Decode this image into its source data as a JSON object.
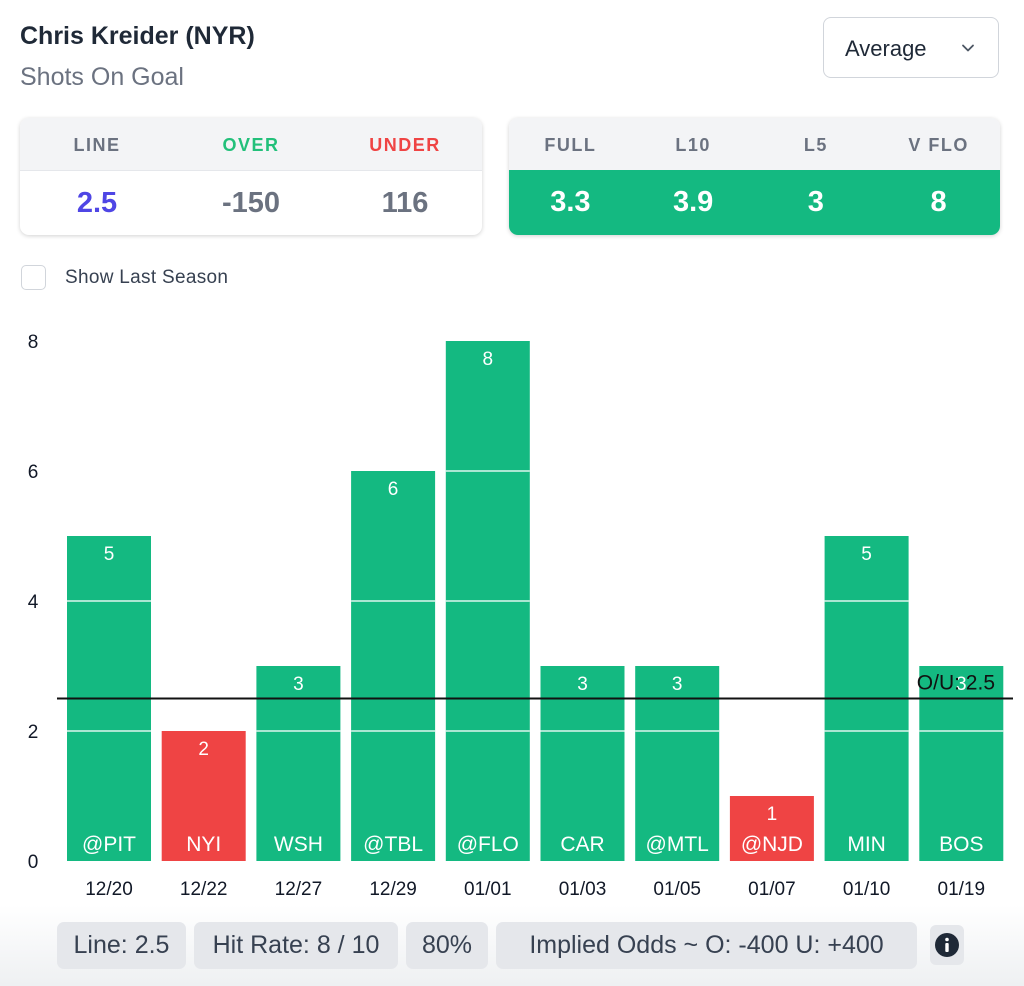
{
  "header": {
    "player": "Chris Kreider (NYR)",
    "stat": "Shots On Goal"
  },
  "dropdown": {
    "selected": "Average",
    "icon": "chevron-down-icon"
  },
  "odds_card": {
    "headers": [
      "LINE",
      "OVER",
      "UNDER"
    ],
    "values": [
      "2.5",
      "-150",
      "116"
    ]
  },
  "avg_card": {
    "headers": [
      "FULL",
      "L10",
      "L5",
      "V FLO"
    ],
    "values": [
      "3.3",
      "3.9",
      "3",
      "8"
    ]
  },
  "checkbox": {
    "label": "Show Last Season",
    "checked": false
  },
  "colors": {
    "over": "#14b981",
    "under": "#ef4444",
    "line_value": "#4f46e5",
    "over_text": "#22c07a"
  },
  "chart_data": {
    "type": "bar",
    "categories": [
      "12/20",
      "12/22",
      "12/27",
      "12/29",
      "01/01",
      "01/03",
      "01/05",
      "01/07",
      "01/10",
      "01/19"
    ],
    "opponents": [
      "@PIT",
      "NYI",
      "WSH",
      "@TBL",
      "@FLO",
      "CAR",
      "@MTL",
      "@NJD",
      "MIN",
      "BOS"
    ],
    "values": [
      5,
      2,
      3,
      6,
      8,
      3,
      3,
      1,
      5,
      3
    ],
    "ylim": [
      0,
      8
    ],
    "yticks": [
      0,
      2,
      4,
      6,
      8
    ],
    "line": 2.5,
    "line_label": "O/U: 2.5",
    "grid": true
  },
  "footer": {
    "line": "Line: 2.5",
    "hit_rate": "Hit Rate: 8 / 10",
    "pct": "80%",
    "implied": "Implied Odds ~ O: -400 U: +400",
    "info_icon": "info-icon"
  }
}
